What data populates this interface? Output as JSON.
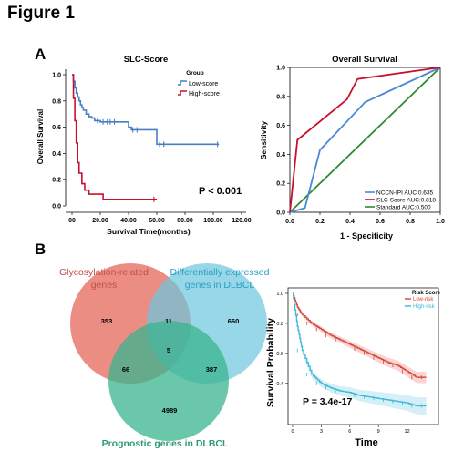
{
  "figure_title": "Figure 1",
  "panels": {
    "A": "A",
    "B": "B"
  },
  "km1": {
    "title": "SLC-Score",
    "legend_title": "Group",
    "legend": [
      "Low-score",
      "High-score"
    ],
    "xlabel": "Survival Time(months)",
    "ylabel": "Overall Survival",
    "pvalue": "P < 0.001",
    "colors": {
      "low": "#4a7ec2",
      "high": "#c8102e"
    }
  },
  "roc": {
    "title": "Overall Survival",
    "xlabel": "1 - Specificity",
    "ylabel": "Sensitivity",
    "legend": [
      "NCCN-IPI AUC:0.635",
      "SLC-Score AUC:0.818",
      "Standard AUC:0.500"
    ],
    "colors": {
      "nccn": "#4a8ad4",
      "slc": "#c8102e",
      "standard": "#2e8b2e"
    }
  },
  "venn": {
    "set_labels": {
      "glyco": [
        "Glycosylation-related",
        "genes"
      ],
      "deg": [
        "Differentially expressed",
        "genes in DLBCL"
      ],
      "prog": [
        "Prognostic genes in DLBCL"
      ]
    },
    "counts": {
      "glyco_only": "353",
      "glyco_deg": "11",
      "deg_only": "660",
      "all": "5",
      "glyco_prog": "66",
      "deg_prog": "387",
      "prog_only": "4989"
    },
    "colors": {
      "glyco": "#e87468",
      "deg": "#6cc6de",
      "prog": "#38b48e"
    }
  },
  "km2": {
    "legend_title": "Risk Score",
    "legend": [
      "Low-risk",
      "High-risk"
    ],
    "xlabel": "Time",
    "ylabel": "Survival Probability",
    "pvalue": "P = 3.4e-17",
    "colors": {
      "low": "#d9453a",
      "high": "#3db8d8"
    }
  },
  "chart_data": [
    {
      "type": "line",
      "title": "SLC-Score",
      "xlabel": "Survival Time(months)",
      "ylabel": "Overall Survival",
      "xlim": [
        0,
        120
      ],
      "ylim": [
        0,
        1
      ],
      "xticks": [
        "00",
        "20.00",
        "40.00",
        "60.00",
        "80.00",
        "100.00",
        "120.00"
      ],
      "yticks": [
        "0.0",
        "0.2",
        "0.4",
        "0.6",
        "0.8",
        "1.0"
      ],
      "legend_position": "top-right",
      "series": [
        {
          "name": "Low-score",
          "step": true,
          "x": [
            0,
            1,
            2,
            3,
            4,
            5,
            6,
            7,
            8,
            10,
            12,
            14,
            16,
            20,
            26,
            40,
            42,
            60,
            104
          ],
          "y": [
            1.0,
            0.95,
            0.9,
            0.86,
            0.83,
            0.8,
            0.77,
            0.75,
            0.73,
            0.7,
            0.68,
            0.67,
            0.65,
            0.64,
            0.64,
            0.6,
            0.58,
            0.47,
            0.47
          ],
          "censor_x": [
            18,
            22,
            25,
            27,
            30,
            43,
            46,
            62,
            65,
            103
          ]
        },
        {
          "name": "High-score",
          "step": true,
          "x": [
            0,
            1,
            2,
            3,
            4,
            5,
            7,
            9,
            12,
            22,
            60
          ],
          "y": [
            1.0,
            0.82,
            0.65,
            0.48,
            0.33,
            0.25,
            0.17,
            0.12,
            0.09,
            0.05,
            0.05
          ],
          "censor_x": [
            58
          ]
        }
      ],
      "annotation": "P < 0.001"
    },
    {
      "type": "line",
      "title": "Overall Survival",
      "xlabel": "1 - Specificity",
      "ylabel": "Sensitivity",
      "xlim": [
        0,
        1
      ],
      "ylim": [
        0,
        1
      ],
      "xticks": [
        "0.0",
        "0.2",
        "0.4",
        "0.6",
        "0.8",
        "1.0"
      ],
      "yticks": [
        "0.0",
        "0.2",
        "0.4",
        "0.6",
        "0.8",
        "1.0"
      ],
      "legend_position": "bottom-right",
      "series": [
        {
          "name": "NCCN-IPI AUC:0.635",
          "x": [
            0,
            0.1,
            0.2,
            0.5,
            1.0
          ],
          "y": [
            0,
            0.03,
            0.43,
            0.76,
            1.0
          ]
        },
        {
          "name": "SLC-Score AUC:0.818",
          "x": [
            0,
            0.05,
            0.38,
            0.45,
            1.0
          ],
          "y": [
            0,
            0.5,
            0.78,
            0.92,
            1.0
          ]
        },
        {
          "name": "Standard AUC:0.500",
          "x": [
            0,
            1.0
          ],
          "y": [
            0,
            1.0
          ]
        }
      ]
    },
    {
      "type": "line",
      "xlabel": "Time",
      "ylabel": "Survival Probability",
      "xlim": [
        0,
        15
      ],
      "ylim": [
        0.15,
        1.0
      ],
      "xticks": [
        "0",
        "3",
        "6",
        "9",
        "12"
      ],
      "yticks": [
        "0.4",
        "0.6",
        "0.8",
        "1.0"
      ],
      "legend_position": "top-right",
      "series": [
        {
          "name": "Low-risk",
          "x": [
            0,
            0.5,
            1,
            2,
            3,
            4,
            5,
            6,
            7,
            8,
            9,
            10,
            11,
            12,
            13,
            14
          ],
          "y": [
            1.0,
            0.91,
            0.86,
            0.8,
            0.76,
            0.72,
            0.69,
            0.66,
            0.63,
            0.6,
            0.57,
            0.54,
            0.52,
            0.48,
            0.44,
            0.44
          ]
        },
        {
          "name": "High-risk",
          "x": [
            0,
            0.5,
            1,
            2,
            3,
            4,
            5,
            6,
            7,
            8,
            9,
            10,
            11,
            12,
            13,
            14
          ],
          "y": [
            1.0,
            0.78,
            0.62,
            0.46,
            0.4,
            0.37,
            0.35,
            0.34,
            0.32,
            0.31,
            0.3,
            0.29,
            0.28,
            0.27,
            0.25,
            0.25
          ]
        }
      ],
      "annotation": "P = 3.4e-17"
    }
  ]
}
